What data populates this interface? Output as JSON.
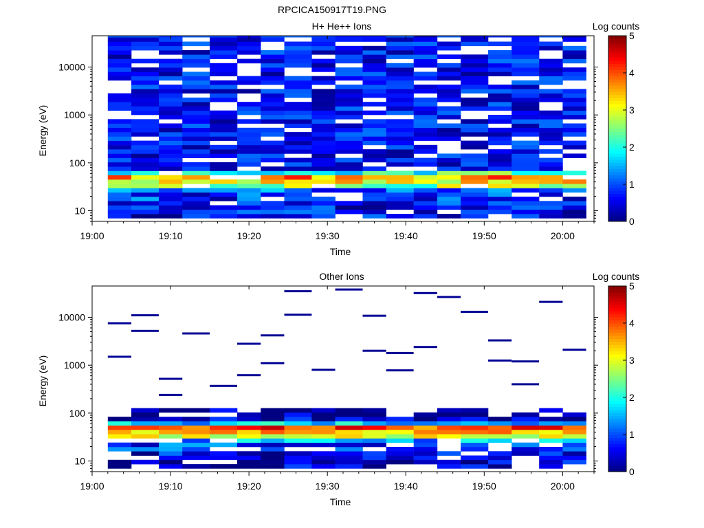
{
  "figure_title": "RPCICA150917T19.PNG",
  "chart_data": [
    {
      "type": "heatmap",
      "title": "H+ He++ Ions",
      "xlabel": "Time",
      "ylabel": "Energy (eV)",
      "x_ticks": [
        "19:00",
        "19:10",
        "19:20",
        "19:30",
        "19:40",
        "19:50",
        "20:00"
      ],
      "y_ticks": [
        "10",
        "100",
        "1000",
        "10000"
      ],
      "y_scale": "log",
      "ylim": [
        6,
        45000
      ],
      "x_range_minutes": [
        0,
        64
      ],
      "colorbar": {
        "label": "Log counts",
        "ticks": [
          "0",
          "1",
          "2",
          "3",
          "4",
          "5"
        ],
        "range": [
          0,
          5
        ],
        "colormap": "jet"
      },
      "columns_start_min": [
        2,
        5,
        8.5,
        11.5,
        15,
        18.5,
        21.5,
        24.5,
        28,
        31,
        34.5,
        37.5,
        41,
        44,
        47,
        50.5,
        53.5,
        57,
        60
      ],
      "columns_end_min": [
        5,
        8.5,
        11.5,
        15,
        18.5,
        21.5,
        24.5,
        28,
        31,
        34.5,
        37.5,
        41,
        44,
        47,
        50.5,
        53.5,
        57,
        60,
        63
      ],
      "low_energy_profile": [
        {
          "energy_eV": 8,
          "log_counts": 0.6
        },
        {
          "energy_eV": 10,
          "log_counts": 0.7
        },
        {
          "energy_eV": 13,
          "log_counts": 0.7
        },
        {
          "energy_eV": 17,
          "log_counts": 0.8
        },
        {
          "energy_eV": 22,
          "log_counts": 1.2
        },
        {
          "energy_eV": 27,
          "log_counts": 1.9
        },
        {
          "energy_eV": 33,
          "log_counts": 2.6
        },
        {
          "energy_eV": 40,
          "log_counts": 3.2
        },
        {
          "energy_eV": 48,
          "log_counts": 3.6
        },
        {
          "energy_eV": 58,
          "log_counts": 2.1
        },
        {
          "energy_eV": 70,
          "log_counts": 0.6
        }
      ],
      "high_energy_level_range": [
        0.1,
        1.2
      ]
    },
    {
      "type": "heatmap",
      "title": "Other Ions",
      "xlabel": "Time",
      "ylabel": "Energy (eV)",
      "x_ticks": [
        "19:00",
        "19:10",
        "19:20",
        "19:30",
        "19:40",
        "19:50",
        "20:00"
      ],
      "y_ticks": [
        "10",
        "100",
        "1000",
        "10000"
      ],
      "y_scale": "log",
      "ylim": [
        6,
        45000
      ],
      "x_range_minutes": [
        0,
        64
      ],
      "colorbar": {
        "label": "Log counts",
        "ticks": [
          "0",
          "1",
          "2",
          "3",
          "4",
          "5"
        ],
        "range": [
          0,
          5
        ],
        "colormap": "jet"
      },
      "low_energy_profile": [
        {
          "energy_eV": 8,
          "log_counts": 0.4
        },
        {
          "energy_eV": 10,
          "log_counts": 0.3
        },
        {
          "energy_eV": 13,
          "log_counts": 0.6
        },
        {
          "energy_eV": 17,
          "log_counts": 0.9
        },
        {
          "energy_eV": 22,
          "log_counts": 1.5
        },
        {
          "energy_eV": 27,
          "log_counts": 2.2
        },
        {
          "energy_eV": 33,
          "log_counts": 2.9
        },
        {
          "energy_eV": 40,
          "log_counts": 3.6
        },
        {
          "energy_eV": 48,
          "log_counts": 4.1
        },
        {
          "energy_eV": 58,
          "log_counts": 1.6
        },
        {
          "energy_eV": 70,
          "log_counts": 0.4
        },
        {
          "energy_eV": 85,
          "log_counts": 0.2
        },
        {
          "energy_eV": 105,
          "log_counts": 0.1
        },
        {
          "energy_eV": 130,
          "log_counts": 0.1
        }
      ],
      "sparse_high_energy_lines_eV": [
        1500,
        620,
        10800,
        3300,
        5200,
        4200,
        1800,
        1200,
        520,
        11300,
        2400,
        21000,
        4600,
        800,
        26500,
        2100,
        370,
        38000,
        13000,
        7500,
        2800,
        2000,
        1250,
        11000,
        1100,
        780,
        400,
        240,
        35000,
        32000
      ]
    }
  ]
}
